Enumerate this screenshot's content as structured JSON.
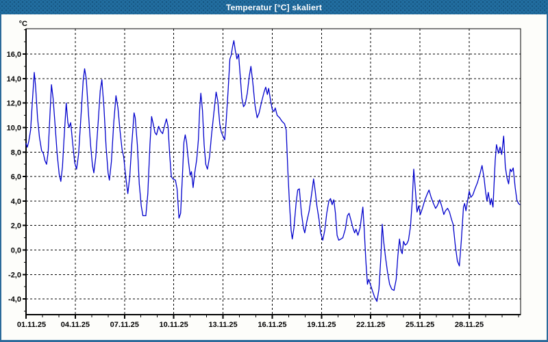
{
  "window": {
    "title": "Temperatur [°C] skaliert",
    "title_bar_color": "#216c9e",
    "border_color": "#2b6a9a",
    "body_color": "#fdfdfa"
  },
  "chart_data": {
    "type": "line",
    "title": "Temperatur [°C] skaliert",
    "ylabel": "°C",
    "xlabel": "",
    "series_name": "Temperatur",
    "line_color": "#0000cc",
    "grid_color": "#000000",
    "plot_background": "#ffffff",
    "grid": "dashed",
    "legend": "none",
    "x_unit": "days since 01.11.25 00:00",
    "xlim": [
      0,
      30.13
    ],
    "ylim": [
      -5.28,
      18.07
    ],
    "x_major_ticks": [
      {
        "day": 0,
        "label": "01.11.25"
      },
      {
        "day": 3,
        "label": "04.11.25"
      },
      {
        "day": 6,
        "label": "07.11.25"
      },
      {
        "day": 9,
        "label": "10.11.25"
      },
      {
        "day": 12,
        "label": "13.11.25"
      },
      {
        "day": 15,
        "label": "16.11.25"
      },
      {
        "day": 18,
        "label": "19.11.25"
      },
      {
        "day": 21,
        "label": "22.11.25"
      },
      {
        "day": 24,
        "label": "25.11.25"
      },
      {
        "day": 27,
        "label": "28.11.25"
      }
    ],
    "x_minor_step_days": 1,
    "y_major_ticks": [
      {
        "v": -4,
        "label": "-4,0"
      },
      {
        "v": -2,
        "label": "-2,0"
      },
      {
        "v": 0,
        "label": "0,0"
      },
      {
        "v": 2,
        "label": "2,0"
      },
      {
        "v": 4,
        "label": "4,0"
      },
      {
        "v": 6,
        "label": "6,0"
      },
      {
        "v": 8,
        "label": "8,0"
      },
      {
        "v": 10,
        "label": "10,0"
      },
      {
        "v": 12,
        "label": "12,0"
      },
      {
        "v": 14,
        "label": "14,0"
      },
      {
        "v": 16,
        "label": "16,0"
      }
    ],
    "y_minor_step": 1,
    "points": [
      [
        0,
        8.7
      ],
      [
        0.08,
        8.4
      ],
      [
        0.17,
        8.9
      ],
      [
        0.28,
        9.8
      ],
      [
        0.38,
        12.0
      ],
      [
        0.5,
        14.5
      ],
      [
        0.58,
        13.4
      ],
      [
        0.7,
        10.8
      ],
      [
        0.82,
        9.2
      ],
      [
        0.95,
        8.1
      ],
      [
        1.05,
        7.9
      ],
      [
        1.15,
        7.3
      ],
      [
        1.25,
        7.0
      ],
      [
        1.35,
        8.0
      ],
      [
        1.45,
        10.8
      ],
      [
        1.55,
        13.5
      ],
      [
        1.65,
        12.4
      ],
      [
        1.78,
        10.0
      ],
      [
        1.9,
        7.8
      ],
      [
        2.02,
        6.2
      ],
      [
        2.12,
        5.6
      ],
      [
        2.22,
        6.8
      ],
      [
        2.32,
        9.2
      ],
      [
        2.45,
        12.0
      ],
      [
        2.55,
        10.4
      ],
      [
        2.62,
        10.0
      ],
      [
        2.72,
        10.4
      ],
      [
        2.85,
        8.6
      ],
      [
        2.97,
        7.1
      ],
      [
        3.08,
        6.6
      ],
      [
        3.2,
        7.8
      ],
      [
        3.35,
        11.0
      ],
      [
        3.48,
        13.8
      ],
      [
        3.57,
        14.8
      ],
      [
        3.67,
        14.0
      ],
      [
        3.8,
        11.2
      ],
      [
        3.93,
        8.6
      ],
      [
        4.05,
        6.9
      ],
      [
        4.13,
        6.3
      ],
      [
        4.25,
        7.6
      ],
      [
        4.4,
        10.5
      ],
      [
        4.52,
        13.0
      ],
      [
        4.62,
        13.9
      ],
      [
        4.75,
        11.6
      ],
      [
        4.88,
        8.4
      ],
      [
        5.0,
        6.3
      ],
      [
        5.08,
        5.7
      ],
      [
        5.2,
        7.2
      ],
      [
        5.35,
        10.5
      ],
      [
        5.48,
        12.6
      ],
      [
        5.6,
        11.6
      ],
      [
        5.72,
        9.8
      ],
      [
        5.85,
        8.2
      ],
      [
        5.95,
        7.6
      ],
      [
        6.08,
        5.9
      ],
      [
        6.2,
        4.6
      ],
      [
        6.32,
        6.0
      ],
      [
        6.45,
        8.8
      ],
      [
        6.58,
        11.2
      ],
      [
        6.65,
        10.8
      ],
      [
        6.78,
        8.6
      ],
      [
        6.9,
        5.4
      ],
      [
        7.02,
        3.6
      ],
      [
        7.12,
        2.8
      ],
      [
        7.3,
        2.8
      ],
      [
        7.42,
        4.6
      ],
      [
        7.55,
        8.6
      ],
      [
        7.65,
        10.9
      ],
      [
        7.75,
        10.3
      ],
      [
        7.85,
        9.6
      ],
      [
        7.95,
        9.4
      ],
      [
        8.08,
        10.1
      ],
      [
        8.2,
        9.7
      ],
      [
        8.32,
        9.5
      ],
      [
        8.45,
        10.2
      ],
      [
        8.55,
        10.7
      ],
      [
        8.65,
        10.1
      ],
      [
        8.75,
        7.8
      ],
      [
        8.85,
        6.0
      ],
      [
        8.95,
        5.8
      ],
      [
        9.1,
        5.7
      ],
      [
        9.2,
        5.0
      ],
      [
        9.32,
        2.6
      ],
      [
        9.42,
        3.0
      ],
      [
        9.52,
        5.8
      ],
      [
        9.62,
        8.8
      ],
      [
        9.7,
        9.4
      ],
      [
        9.78,
        8.8
      ],
      [
        9.88,
        7.4
      ],
      [
        10.0,
        6.1
      ],
      [
        10.08,
        6.4
      ],
      [
        10.18,
        5.1
      ],
      [
        10.28,
        6.3
      ],
      [
        10.4,
        7.4
      ],
      [
        10.5,
        9.0
      ],
      [
        10.58,
        11.5
      ],
      [
        10.65,
        12.8
      ],
      [
        10.75,
        11.4
      ],
      [
        10.85,
        8.6
      ],
      [
        10.95,
        7.0
      ],
      [
        11.05,
        6.6
      ],
      [
        11.18,
        7.6
      ],
      [
        11.3,
        9.4
      ],
      [
        11.45,
        11.3
      ],
      [
        11.58,
        12.9
      ],
      [
        11.68,
        12.2
      ],
      [
        11.8,
        10.3
      ],
      [
        11.9,
        9.6
      ],
      [
        12.0,
        9.3
      ],
      [
        12.1,
        9.0
      ],
      [
        12.2,
        10.6
      ],
      [
        12.32,
        13.2
      ],
      [
        12.42,
        15.6
      ],
      [
        12.5,
        15.9
      ],
      [
        12.58,
        16.6
      ],
      [
        12.66,
        17.1
      ],
      [
        12.75,
        16.3
      ],
      [
        12.85,
        15.6
      ],
      [
        12.95,
        16.0
      ],
      [
        13.05,
        14.2
      ],
      [
        13.15,
        12.4
      ],
      [
        13.25,
        11.7
      ],
      [
        13.35,
        11.9
      ],
      [
        13.48,
        12.8
      ],
      [
        13.6,
        14.2
      ],
      [
        13.7,
        15.0
      ],
      [
        13.82,
        13.6
      ],
      [
        13.95,
        11.8
      ],
      [
        14.08,
        10.8
      ],
      [
        14.2,
        11.2
      ],
      [
        14.35,
        12.1
      ],
      [
        14.5,
        12.9
      ],
      [
        14.6,
        13.3
      ],
      [
        14.7,
        12.7
      ],
      [
        14.78,
        13.2
      ],
      [
        14.9,
        12.2
      ],
      [
        15.0,
        11.5
      ],
      [
        15.1,
        11.3
      ],
      [
        15.18,
        11.6
      ],
      [
        15.3,
        11.0
      ],
      [
        15.45,
        10.8
      ],
      [
        15.6,
        10.5
      ],
      [
        15.75,
        10.3
      ],
      [
        15.85,
        9.8
      ],
      [
        15.95,
        6.5
      ],
      [
        16.05,
        3.8
      ],
      [
        16.15,
        1.6
      ],
      [
        16.22,
        0.9
      ],
      [
        16.32,
        1.8
      ],
      [
        16.45,
        3.8
      ],
      [
        16.55,
        4.9
      ],
      [
        16.65,
        5.0
      ],
      [
        16.78,
        3.0
      ],
      [
        16.9,
        1.8
      ],
      [
        16.98,
        1.4
      ],
      [
        17.1,
        2.3
      ],
      [
        17.25,
        3.2
      ],
      [
        17.4,
        4.6
      ],
      [
        17.52,
        5.8
      ],
      [
        17.62,
        4.8
      ],
      [
        17.72,
        3.6
      ],
      [
        17.85,
        2.5
      ],
      [
        17.95,
        1.4
      ],
      [
        18.08,
        0.8
      ],
      [
        18.2,
        1.6
      ],
      [
        18.32,
        3.0
      ],
      [
        18.45,
        4.0
      ],
      [
        18.55,
        4.2
      ],
      [
        18.65,
        3.7
      ],
      [
        18.75,
        4.1
      ],
      [
        18.85,
        3.0
      ],
      [
        18.95,
        1.2
      ],
      [
        19.05,
        0.8
      ],
      [
        19.18,
        0.9
      ],
      [
        19.3,
        1.0
      ],
      [
        19.45,
        1.7
      ],
      [
        19.58,
        2.8
      ],
      [
        19.68,
        3.0
      ],
      [
        19.8,
        2.4
      ],
      [
        19.92,
        1.8
      ],
      [
        20.02,
        1.4
      ],
      [
        20.1,
        1.7
      ],
      [
        20.22,
        1.2
      ],
      [
        20.35,
        1.8
      ],
      [
        20.45,
        2.8
      ],
      [
        20.52,
        3.5
      ],
      [
        20.6,
        1.8
      ],
      [
        20.7,
        -0.8
      ],
      [
        20.8,
        -2.8
      ],
      [
        20.88,
        -2.4
      ],
      [
        21.0,
        -2.9
      ],
      [
        21.12,
        -3.4
      ],
      [
        21.25,
        -3.9
      ],
      [
        21.38,
        -4.2
      ],
      [
        21.5,
        -3.2
      ],
      [
        21.62,
        -0.5
      ],
      [
        21.7,
        2.1
      ],
      [
        21.78,
        0.8
      ],
      [
        21.9,
        -0.6
      ],
      [
        22.02,
        -1.8
      ],
      [
        22.15,
        -2.8
      ],
      [
        22.28,
        -3.2
      ],
      [
        22.42,
        -3.3
      ],
      [
        22.55,
        -2.4
      ],
      [
        22.65,
        -0.5
      ],
      [
        22.75,
        0.9
      ],
      [
        22.85,
        -0.1
      ],
      [
        22.92,
        -0.3
      ],
      [
        23.0,
        0.7
      ],
      [
        23.1,
        0.4
      ],
      [
        23.2,
        0.5
      ],
      [
        23.3,
        0.8
      ],
      [
        23.42,
        1.9
      ],
      [
        23.52,
        3.8
      ],
      [
        23.62,
        6.6
      ],
      [
        23.72,
        4.9
      ],
      [
        23.82,
        3.1
      ],
      [
        23.92,
        3.6
      ],
      [
        24.02,
        2.9
      ],
      [
        24.15,
        3.4
      ],
      [
        24.3,
        4.1
      ],
      [
        24.45,
        4.6
      ],
      [
        24.55,
        4.9
      ],
      [
        24.68,
        4.3
      ],
      [
        24.82,
        3.8
      ],
      [
        24.95,
        3.4
      ],
      [
        25.05,
        3.6
      ],
      [
        25.2,
        4.1
      ],
      [
        25.32,
        3.6
      ],
      [
        25.45,
        2.9
      ],
      [
        25.55,
        3.2
      ],
      [
        25.68,
        3.4
      ],
      [
        25.8,
        3.1
      ],
      [
        25.92,
        2.5
      ],
      [
        26.02,
        2.1
      ],
      [
        26.15,
        0.4
      ],
      [
        26.28,
        -0.9
      ],
      [
        26.4,
        -1.3
      ],
      [
        26.52,
        0.8
      ],
      [
        26.65,
        3.5
      ],
      [
        26.72,
        3.8
      ],
      [
        26.8,
        3.2
      ],
      [
        26.9,
        4.0
      ],
      [
        27.0,
        4.8
      ],
      [
        27.1,
        4.3
      ],
      [
        27.22,
        4.5
      ],
      [
        27.35,
        5.0
      ],
      [
        27.5,
        5.5
      ],
      [
        27.65,
        6.2
      ],
      [
        27.78,
        6.9
      ],
      [
        27.9,
        5.9
      ],
      [
        28.0,
        4.7
      ],
      [
        28.08,
        4.0
      ],
      [
        28.16,
        4.7
      ],
      [
        28.28,
        3.7
      ],
      [
        28.35,
        4.2
      ],
      [
        28.45,
        3.5
      ],
      [
        28.58,
        7.3
      ],
      [
        28.66,
        8.6
      ],
      [
        28.78,
        7.9
      ],
      [
        28.88,
        8.4
      ],
      [
        28.98,
        7.8
      ],
      [
        29.1,
        9.3
      ],
      [
        29.2,
        6.8
      ],
      [
        29.3,
        5.9
      ],
      [
        29.4,
        5.4
      ],
      [
        29.5,
        6.6
      ],
      [
        29.58,
        6.4
      ],
      [
        29.68,
        6.7
      ],
      [
        29.8,
        5.1
      ],
      [
        29.9,
        4.1
      ],
      [
        30.0,
        3.8
      ],
      [
        30.08,
        3.7
      ]
    ]
  }
}
